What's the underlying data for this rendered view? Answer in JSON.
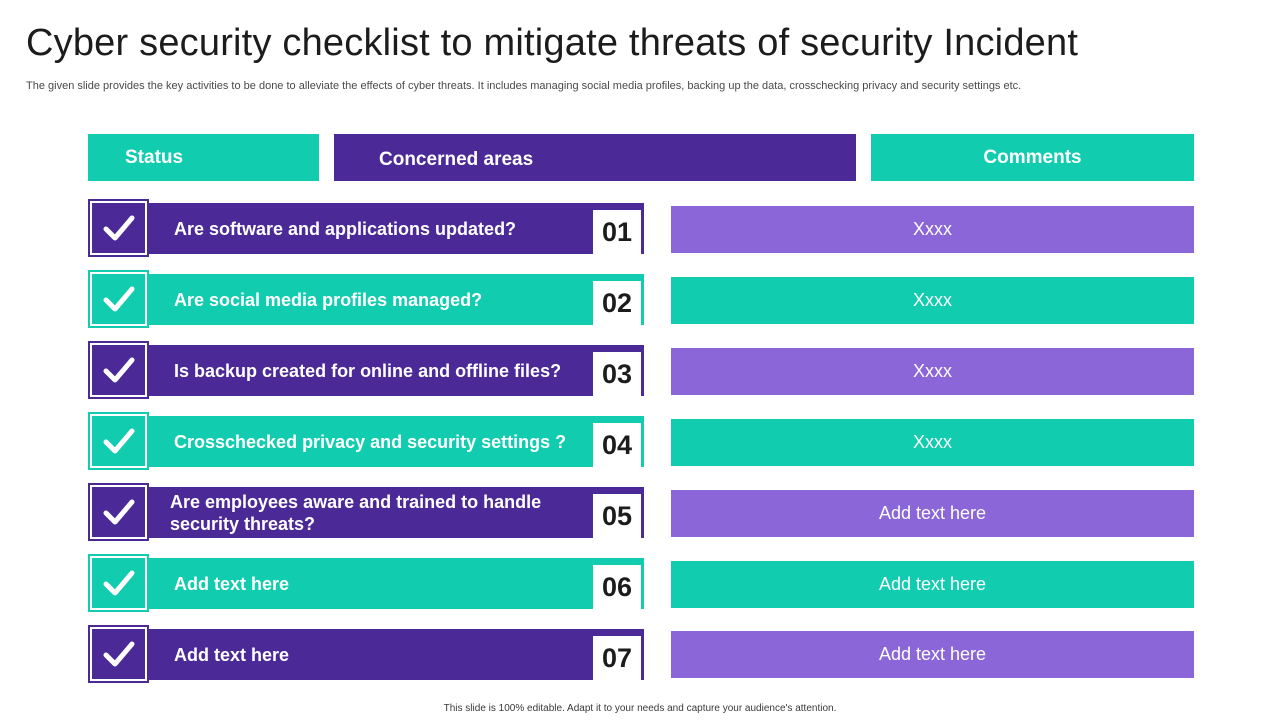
{
  "title": "Cyber security checklist to mitigate threats of security Incident",
  "subtitle": "The given slide provides the key activities to be done to alleviate the effects of cyber threats. It includes managing social media profiles, backing up the data, crosschecking privacy and security settings etc.",
  "headers": {
    "status": "Status",
    "concerned": "Concerned areas",
    "comments": "Comments"
  },
  "rows": [
    {
      "label": "Are software and applications updated?",
      "number": "01",
      "comment": "Xxxx"
    },
    {
      "label": "Are social media profiles managed?",
      "number": "02",
      "comment": "Xxxx"
    },
    {
      "label": "Is backup created for online and offline files?",
      "number": "03",
      "comment": "Xxxx"
    },
    {
      "label": "Crosschecked privacy and security settings ?",
      "number": "04",
      "comment": "Xxxx"
    },
    {
      "label": "Are employees aware and trained to handle security threats?",
      "number": "05",
      "comment": "Add text here"
    },
    {
      "label": "Add text here",
      "number": "06",
      "comment": "Add text here"
    },
    {
      "label": "Add text here",
      "number": "07",
      "comment": "Add text here"
    }
  ],
  "icons": {
    "status": "checkmark-icon"
  },
  "colors": {
    "purple_dark": "#4b2a97",
    "teal": "#11ccaf",
    "purple_light": "#8a66d9"
  },
  "footer": "This slide is 100% editable. Adapt it to your needs and capture your audience's attention."
}
